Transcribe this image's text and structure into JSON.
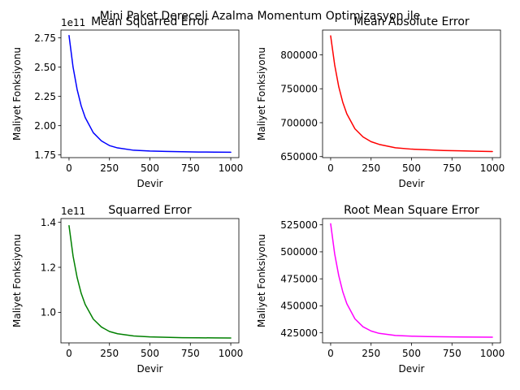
{
  "suptitle": "Mini Paket Dereceli Azalma Momentum Optimizasyon ile",
  "chart_data": [
    {
      "type": "line",
      "title": "Mean Squarred Error",
      "xlabel": "Devir",
      "ylabel": "Maliyet Fonksiyonu",
      "offset_text": "1e11",
      "color": "#0000ff",
      "xlim": [
        -50,
        1050
      ],
      "ylim": [
        1.727,
        2.817
      ],
      "xticks": [
        0,
        250,
        500,
        750,
        1000
      ],
      "xtick_labels": [
        "0",
        "250",
        "500",
        "750",
        "1000"
      ],
      "yticks": [
        1.75,
        2.0,
        2.25,
        2.5,
        2.75
      ],
      "ytick_labels": [
        "1.75",
        "2.00",
        "2.25",
        "2.50",
        "2.75"
      ],
      "x": [
        0,
        25,
        50,
        75,
        100,
        150,
        200,
        250,
        300,
        400,
        500,
        600,
        700,
        800,
        900,
        1000
      ],
      "y": [
        2.77,
        2.5,
        2.31,
        2.17,
        2.07,
        1.94,
        1.87,
        1.83,
        1.81,
        1.79,
        1.783,
        1.78,
        1.777,
        1.775,
        1.774,
        1.773
      ]
    },
    {
      "type": "line",
      "title": "Mean Absolute Error",
      "xlabel": "Devir",
      "ylabel": "Maliyet Fonksiyonu",
      "offset_text": "",
      "color": "#ff0000",
      "xlim": [
        -50,
        1050
      ],
      "ylim": [
        648500,
        836500
      ],
      "xticks": [
        0,
        250,
        500,
        750,
        1000
      ],
      "xtick_labels": [
        "0",
        "250",
        "500",
        "750",
        "1000"
      ],
      "yticks": [
        650000,
        700000,
        750000,
        800000
      ],
      "ytick_labels": [
        "650000",
        "700000",
        "750000",
        "800000"
      ],
      "x": [
        0,
        25,
        50,
        75,
        100,
        150,
        200,
        250,
        300,
        400,
        500,
        600,
        700,
        800,
        900,
        1000
      ],
      "y": [
        828000,
        785000,
        753000,
        730000,
        713000,
        691000,
        679000,
        672000,
        668000,
        663000,
        661000,
        660000,
        659000,
        658500,
        658000,
        657500
      ]
    },
    {
      "type": "line",
      "title": "Squarred Error",
      "xlabel": "Devir",
      "ylabel": "Maliyet Fonksiyonu",
      "offset_text": "1e11",
      "color": "#008000",
      "xlim": [
        -50,
        1050
      ],
      "ylim": [
        0.8644,
        1.4166
      ],
      "xticks": [
        0,
        250,
        500,
        750,
        1000
      ],
      "xtick_labels": [
        "0",
        "250",
        "500",
        "750",
        "1000"
      ],
      "yticks": [
        1.0,
        1.2,
        1.4
      ],
      "ytick_labels": [
        "1.0",
        "1.2",
        "1.4"
      ],
      "x": [
        0,
        25,
        50,
        75,
        100,
        150,
        200,
        250,
        300,
        400,
        500,
        600,
        700,
        800,
        900,
        1000
      ],
      "y": [
        1.385,
        1.25,
        1.155,
        1.085,
        1.035,
        0.97,
        0.935,
        0.915,
        0.905,
        0.895,
        0.891,
        0.889,
        0.8875,
        0.887,
        0.8865,
        0.886
      ]
    },
    {
      "type": "line",
      "title": "Root Mean Square Error",
      "xlabel": "Devir",
      "ylabel": "Maliyet Fonksiyonu",
      "offset_text": "",
      "color": "#ff00ff",
      "xlim": [
        -50,
        1050
      ],
      "ylim": [
        415700,
        530800
      ],
      "xticks": [
        0,
        250,
        500,
        750,
        1000
      ],
      "xtick_labels": [
        "0",
        "250",
        "500",
        "750",
        "1000"
      ],
      "yticks": [
        425000,
        450000,
        475000,
        500000,
        525000
      ],
      "ytick_labels": [
        "425000",
        "450000",
        "475000",
        "500000",
        "525000"
      ],
      "x": [
        0,
        25,
        50,
        75,
        100,
        150,
        200,
        250,
        300,
        400,
        500,
        600,
        700,
        800,
        900,
        1000
      ],
      "y": [
        526000,
        498000,
        478000,
        463000,
        452000,
        438000,
        430600,
        426700,
        424500,
        422600,
        421900,
        421500,
        421300,
        421150,
        421050,
        421000
      ]
    }
  ]
}
